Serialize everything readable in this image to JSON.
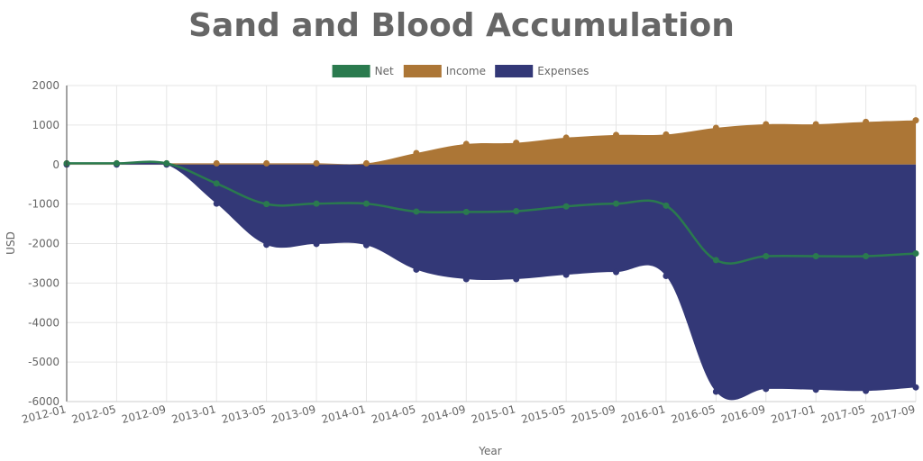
{
  "chart_data": {
    "type": "area",
    "title": "Sand and Blood Accumulation",
    "xlabel": "Year",
    "ylabel": "USD",
    "ylim": [
      -6000,
      2000
    ],
    "yticks": [
      2000,
      1000,
      0,
      -1000,
      -2000,
      -3000,
      -4000,
      -5000,
      -6000
    ],
    "grid": true,
    "legend_position": "top-center",
    "x": [
      "2012-01",
      "2012-05",
      "2012-09",
      "2013-01",
      "2013-05",
      "2013-09",
      "2014-01",
      "2014-05",
      "2014-09",
      "2015-01",
      "2015-05",
      "2015-09",
      "2016-01",
      "2016-05",
      "2016-09",
      "2017-01",
      "2017-05",
      "2017-09"
    ],
    "series": [
      {
        "name": "Net",
        "kind": "line",
        "color": "#2a7a4e",
        "values": [
          30,
          30,
          30,
          -480,
          -1000,
          -990,
          -990,
          -1190,
          -1200,
          -1180,
          -1060,
          -990,
          -1040,
          -2420,
          -2320,
          -2320,
          -2320,
          -2250
        ]
      },
      {
        "name": "Income",
        "kind": "area",
        "color": "#ac7636",
        "values": [
          30,
          30,
          30,
          30,
          30,
          30,
          30,
          290,
          520,
          550,
          680,
          750,
          760,
          930,
          1020,
          1020,
          1080,
          1120
        ]
      },
      {
        "name": "Expenses",
        "kind": "area",
        "color": "#333877",
        "values": [
          0,
          0,
          0,
          -990,
          -2030,
          -2010,
          -2040,
          -2660,
          -2900,
          -2900,
          -2790,
          -2720,
          -2820,
          -5750,
          -5680,
          -5700,
          -5730,
          -5640
        ]
      }
    ]
  }
}
